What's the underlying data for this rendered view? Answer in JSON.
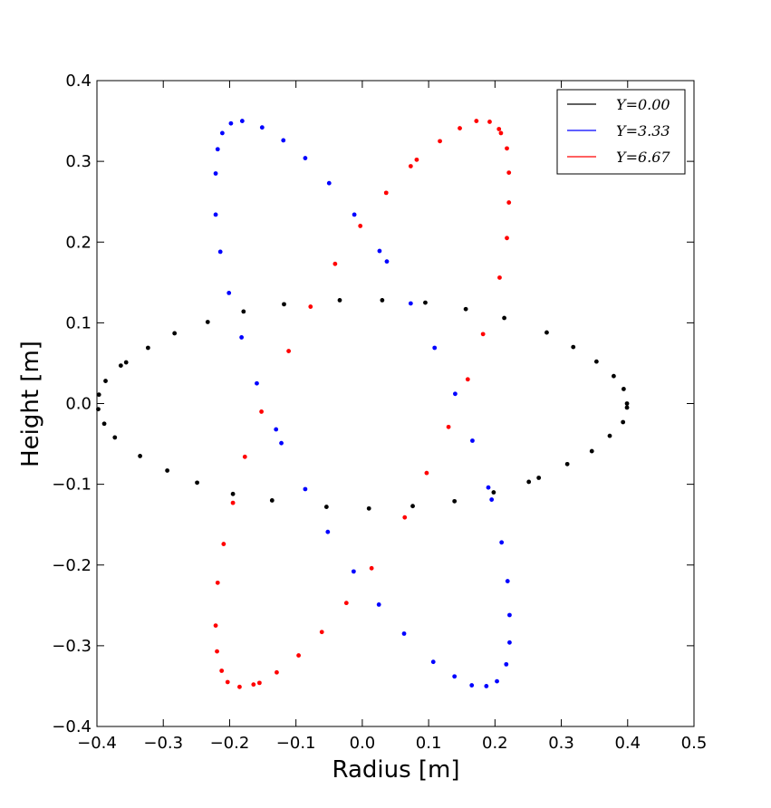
{
  "chart_data": {
    "type": "scatter",
    "title": "",
    "xlabel": "Radius [m]",
    "ylabel": "Height [m]",
    "xlim": [
      -0.4,
      0.5
    ],
    "ylim": [
      -0.4,
      0.4
    ],
    "xticks": [
      "−0.4",
      "−0.3",
      "−0.2",
      "−0.1",
      "0.0",
      "0.1",
      "0.2",
      "0.3",
      "0.4",
      "0.5"
    ],
    "xtick_values": [
      -0.4,
      -0.3,
      -0.2,
      -0.1,
      0.0,
      0.1,
      0.2,
      0.3,
      0.4,
      0.5
    ],
    "yticks": [
      "−0.4",
      "−0.3",
      "−0.2",
      "−0.1",
      "0.0",
      "0.1",
      "0.2",
      "0.3",
      "0.4"
    ],
    "ytick_values": [
      -0.4,
      -0.3,
      -0.2,
      -0.1,
      0.0,
      0.1,
      0.2,
      0.3,
      0.4
    ],
    "grid": false,
    "legend_position": "top-right",
    "series": [
      {
        "name": "Y=0.00",
        "color": "#000000",
        "points": [
          [
            0.399,
            -0.005
          ],
          [
            0.399,
            0.0
          ],
          [
            0.394,
            0.018
          ],
          [
            0.393,
            -0.023
          ],
          [
            0.379,
            0.034
          ],
          [
            0.373,
            -0.04
          ],
          [
            0.353,
            0.052
          ],
          [
            0.346,
            -0.059
          ],
          [
            0.318,
            0.07
          ],
          [
            0.309,
            -0.075
          ],
          [
            0.278,
            0.088
          ],
          [
            0.266,
            -0.092
          ],
          [
            0.251,
            -0.097
          ],
          [
            0.214,
            0.106
          ],
          [
            0.198,
            -0.11
          ],
          [
            0.156,
            0.117
          ],
          [
            0.139,
            -0.121
          ],
          [
            0.095,
            0.125
          ],
          [
            0.076,
            -0.127
          ],
          [
            0.03,
            0.128
          ],
          [
            0.01,
            -0.13
          ],
          [
            -0.034,
            0.128
          ],
          [
            -0.054,
            -0.128
          ],
          [
            -0.118,
            0.123
          ],
          [
            -0.136,
            -0.12
          ],
          [
            -0.179,
            0.114
          ],
          [
            -0.195,
            -0.112
          ],
          [
            -0.233,
            0.101
          ],
          [
            -0.249,
            -0.098
          ],
          [
            -0.283,
            0.087
          ],
          [
            -0.294,
            -0.083
          ],
          [
            -0.323,
            0.069
          ],
          [
            -0.335,
            -0.065
          ],
          [
            -0.356,
            0.051
          ],
          [
            -0.364,
            0.047
          ],
          [
            -0.373,
            -0.042
          ],
          [
            -0.387,
            0.028
          ],
          [
            -0.389,
            -0.025
          ],
          [
            -0.397,
            0.011
          ],
          [
            -0.398,
            -0.007
          ]
        ]
      },
      {
        "name": "Y=3.33",
        "color": "#0000ff",
        "points": [
          [
            -0.181,
            0.35
          ],
          [
            -0.198,
            0.347
          ],
          [
            -0.211,
            0.335
          ],
          [
            -0.218,
            0.315
          ],
          [
            -0.221,
            0.285
          ],
          [
            -0.221,
            0.234
          ],
          [
            -0.214,
            0.188
          ],
          [
            -0.201,
            0.137
          ],
          [
            -0.182,
            0.082
          ],
          [
            -0.159,
            0.025
          ],
          [
            -0.13,
            -0.032
          ],
          [
            -0.122,
            -0.049
          ],
          [
            -0.086,
            -0.106
          ],
          [
            -0.052,
            -0.159
          ],
          [
            -0.013,
            -0.208
          ],
          [
            0.025,
            -0.249
          ],
          [
            0.063,
            -0.285
          ],
          [
            0.107,
            -0.32
          ],
          [
            0.139,
            -0.338
          ],
          [
            0.165,
            -0.349
          ],
          [
            0.187,
            -0.35
          ],
          [
            0.203,
            -0.344
          ],
          [
            0.217,
            -0.323
          ],
          [
            0.222,
            -0.296
          ],
          [
            0.222,
            -0.262
          ],
          [
            0.219,
            -0.22
          ],
          [
            0.21,
            -0.172
          ],
          [
            0.195,
            -0.119
          ],
          [
            0.19,
            -0.104
          ],
          [
            0.166,
            -0.046
          ],
          [
            0.14,
            0.012
          ],
          [
            0.109,
            0.069
          ],
          [
            0.073,
            0.124
          ],
          [
            0.037,
            0.176
          ],
          [
            0.026,
            0.189
          ],
          [
            -0.012,
            0.234
          ],
          [
            -0.05,
            0.273
          ],
          [
            -0.086,
            0.304
          ],
          [
            -0.119,
            0.326
          ],
          [
            -0.151,
            0.342
          ]
        ]
      },
      {
        "name": "Y=6.67",
        "color": "#ff0000",
        "points": [
          [
            0.172,
            0.35
          ],
          [
            0.192,
            0.349
          ],
          [
            0.206,
            0.34
          ],
          [
            0.209,
            0.335
          ],
          [
            0.218,
            0.316
          ],
          [
            0.221,
            0.286
          ],
          [
            0.221,
            0.249
          ],
          [
            0.218,
            0.205
          ],
          [
            0.207,
            0.156
          ],
          [
            0.182,
            0.086
          ],
          [
            0.159,
            0.03
          ],
          [
            0.13,
            -0.029
          ],
          [
            0.097,
            -0.086
          ],
          [
            0.064,
            -0.141
          ],
          [
            0.014,
            -0.204
          ],
          [
            -0.024,
            -0.247
          ],
          [
            -0.061,
            -0.283
          ],
          [
            -0.096,
            -0.312
          ],
          [
            -0.129,
            -0.333
          ],
          [
            -0.155,
            -0.346
          ],
          [
            -0.164,
            -0.348
          ],
          [
            -0.185,
            -0.351
          ],
          [
            -0.203,
            -0.345
          ],
          [
            -0.212,
            -0.331
          ],
          [
            -0.219,
            -0.307
          ],
          [
            -0.221,
            -0.275
          ],
          [
            -0.218,
            -0.222
          ],
          [
            -0.209,
            -0.174
          ],
          [
            -0.195,
            -0.123
          ],
          [
            -0.177,
            -0.066
          ],
          [
            -0.152,
            -0.01
          ],
          [
            -0.111,
            0.065
          ],
          [
            -0.078,
            0.12
          ],
          [
            -0.041,
            0.173
          ],
          [
            -0.003,
            0.22
          ],
          [
            0.036,
            0.261
          ],
          [
            0.082,
            0.302
          ],
          [
            0.073,
            0.294
          ],
          [
            0.117,
            0.325
          ],
          [
            0.147,
            0.341
          ]
        ]
      }
    ],
    "legend_entries": [
      "Y=0.00",
      "Y=3.33",
      "Y=6.67"
    ]
  }
}
